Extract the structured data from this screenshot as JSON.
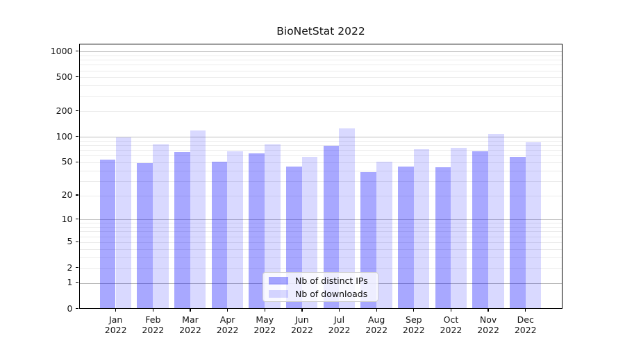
{
  "chart_data": {
    "type": "bar",
    "title": "BioNetStat 2022",
    "scale": "log1p",
    "grid": true,
    "legend_position": "lower center",
    "year": "2022",
    "categories": [
      "Jan",
      "Feb",
      "Mar",
      "Apr",
      "May",
      "Jun",
      "Jul",
      "Aug",
      "Sep",
      "Oct",
      "Nov",
      "Dec"
    ],
    "series": [
      {
        "name": "Nb of distinct IPs",
        "color": "rgba(0,0,255,0.34)",
        "values": [
          53,
          48,
          66,
          50,
          63,
          44,
          78,
          38,
          44,
          43,
          67,
          57
        ]
      },
      {
        "name": "Nb of downloads",
        "color": "rgba(0,0,255,0.15)",
        "values": [
          98,
          80,
          118,
          67,
          81,
          57,
          125,
          50,
          70,
          74,
          106,
          86
        ]
      }
    ],
    "yticks": [
      0,
      1,
      2,
      5,
      10,
      20,
      50,
      100,
      200,
      500,
      1000
    ],
    "ylim": [
      0,
      1230
    ],
    "xlabel": "",
    "ylabel": ""
  }
}
